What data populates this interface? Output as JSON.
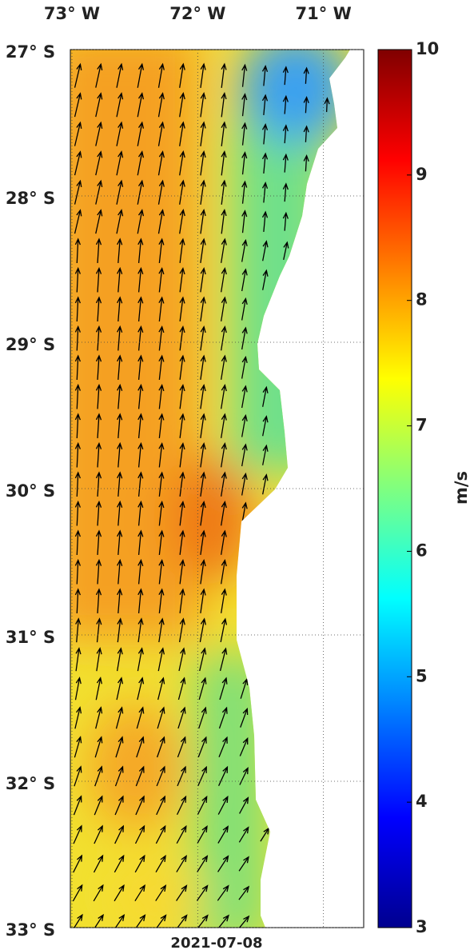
{
  "map": {
    "date": "2021-07-08",
    "xlim": [
      -73,
      -70.68
    ],
    "ylim": [
      -33,
      -27
    ],
    "lon_ticks": [
      {
        "value": -73,
        "label": "73° W"
      },
      {
        "value": -72,
        "label": "72° W"
      },
      {
        "value": -71,
        "label": "71° W"
      }
    ],
    "lat_ticks": [
      {
        "value": -27,
        "label": "27° S"
      },
      {
        "value": -28,
        "label": "28° S"
      },
      {
        "value": -29,
        "label": "29° S"
      },
      {
        "value": -30,
        "label": "30° S"
      },
      {
        "value": -31,
        "label": "31° S"
      },
      {
        "value": -32,
        "label": "32° S"
      },
      {
        "value": -33,
        "label": "33° S"
      }
    ],
    "colorbar": {
      "label": "m/s",
      "lim": [
        3,
        10
      ],
      "ticks": [
        3,
        4,
        5,
        6,
        7,
        8,
        9,
        10
      ]
    }
  }
}
